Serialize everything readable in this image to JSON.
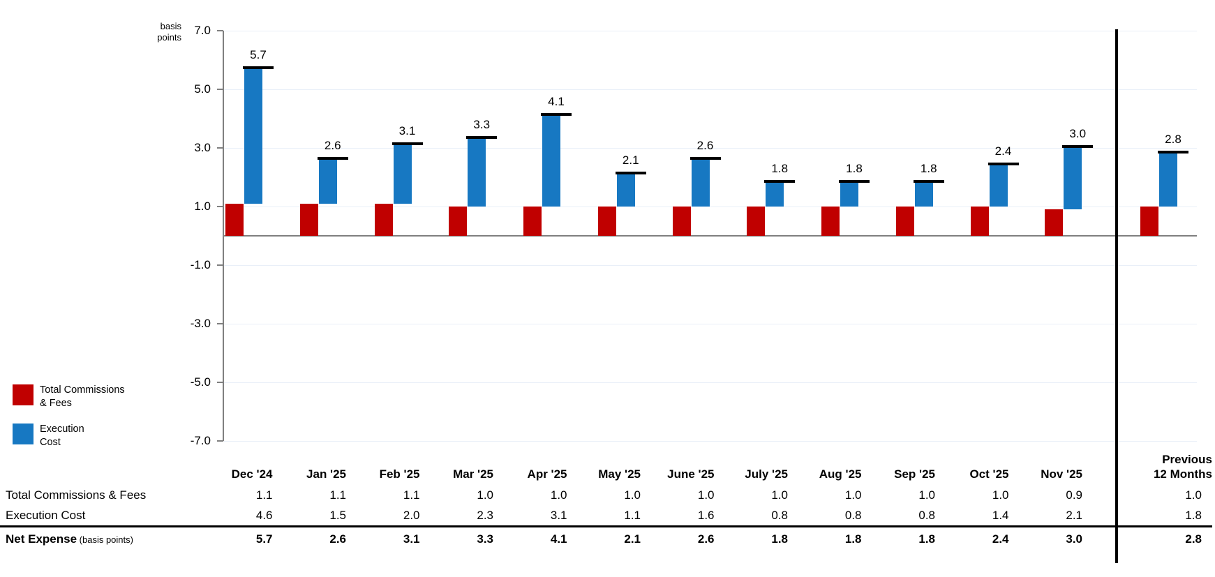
{
  "y_axis": {
    "unit_lines": [
      "basis",
      "points"
    ],
    "tick_values": [
      7,
      5,
      3,
      1,
      -1,
      -3,
      -5,
      -7
    ]
  },
  "legend": {
    "items": [
      {
        "name_lines": [
          "Total Commissions",
          "& Fees"
        ],
        "color": "#C00000"
      },
      {
        "name_lines": [
          "Execution",
          "Cost"
        ],
        "color": "#1778C2"
      }
    ]
  },
  "chart_data": {
    "type": "bar",
    "subtype": "stacked-offset-columns-with-total-markers",
    "title": "",
    "ylabel": "basis points",
    "xlabel": "",
    "ylim": [
      -7,
      7
    ],
    "ytick_step": 2,
    "grid": true,
    "legend_position": "bottom-left",
    "categories": [
      "Dec '24",
      "Jan '25",
      "Feb '25",
      "Mar '25",
      "Apr '25",
      "May '25",
      "June '25",
      "July '25",
      "Aug '25",
      "Sep '25",
      "Oct '25",
      "Nov '25",
      "Previous 12 Months"
    ],
    "series": [
      {
        "name": "Total Commissions & Fees",
        "color": "#C00000",
        "values": [
          1.1,
          1.1,
          1.1,
          1.0,
          1.0,
          1.0,
          1.0,
          1.0,
          1.0,
          1.0,
          1.0,
          0.9,
          1.0
        ]
      },
      {
        "name": "Execution Cost",
        "color": "#1778C2",
        "values": [
          4.6,
          1.5,
          2.0,
          2.3,
          3.1,
          1.1,
          1.6,
          0.8,
          0.8,
          0.8,
          1.4,
          2.1,
          1.8
        ]
      }
    ],
    "totals": [
      5.7,
      2.6,
      3.1,
      3.3,
      4.1,
      2.1,
      2.6,
      1.8,
      1.8,
      1.8,
      2.4,
      3.0,
      2.8
    ],
    "total_marker_color": "#000000"
  },
  "table": {
    "columns": [
      "Dec '24",
      "Jan '25",
      "Feb '25",
      "Mar '25",
      "Apr '25",
      "May '25",
      "June '25",
      "July '25",
      "Aug '25",
      "Sep '25",
      "Oct '25",
      "Nov '25"
    ],
    "summary_column_lines": [
      "Previous",
      "12 Months"
    ],
    "rows": [
      {
        "label": "Total Commissions & Fees",
        "label_note": "",
        "bold": false,
        "values": [
          1.1,
          1.1,
          1.1,
          1.0,
          1.0,
          1.0,
          1.0,
          1.0,
          1.0,
          1.0,
          1.0,
          0.9
        ],
        "summary": 1.0
      },
      {
        "label": "Execution Cost",
        "label_note": "",
        "bold": false,
        "values": [
          4.6,
          1.5,
          2.0,
          2.3,
          3.1,
          1.1,
          1.6,
          0.8,
          0.8,
          0.8,
          1.4,
          2.1
        ],
        "summary": 1.8
      },
      {
        "label": "Net Expense",
        "label_note": "(basis points)",
        "bold": true,
        "values": [
          5.7,
          2.6,
          3.1,
          3.3,
          4.1,
          2.1,
          2.6,
          1.8,
          1.8,
          1.8,
          2.4,
          3.0
        ],
        "summary": 2.8
      }
    ]
  },
  "colors": {
    "commissions_red": "#C00000",
    "execution_blue": "#1778C2",
    "gridline": "#E9EFF8",
    "axis_gray": "#808080",
    "separator_black": "#000000"
  }
}
